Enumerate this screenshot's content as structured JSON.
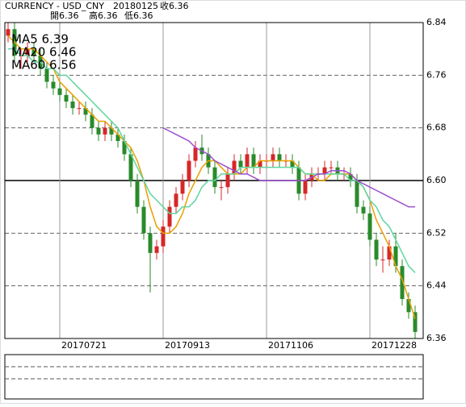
{
  "chart_data": {
    "type": "candlestick",
    "header": {
      "symbol": "CURRENCY - USD_CNY",
      "date": "20180125",
      "close": "收6.36",
      "open": "開6.36",
      "high": "高6.36",
      "low": "低6.36"
    },
    "categories": [
      null,
      null,
      null,
      null,
      null,
      null,
      null,
      null,
      "20170721",
      null,
      null,
      null,
      null,
      null,
      null,
      null,
      null,
      null,
      null,
      null,
      null,
      null,
      null,
      null,
      "20170913",
      null,
      null,
      null,
      null,
      null,
      null,
      null,
      null,
      null,
      null,
      null,
      null,
      null,
      null,
      null,
      "20171106",
      null,
      null,
      null,
      null,
      null,
      null,
      null,
      null,
      null,
      null,
      null,
      null,
      null,
      null,
      null,
      "20171228",
      null,
      null,
      null,
      null,
      null,
      null,
      null
    ],
    "open": [
      6.82,
      6.83,
      6.79,
      6.79,
      6.8,
      6.79,
      6.77,
      6.75,
      6.74,
      6.73,
      6.72,
      6.71,
      6.71,
      6.7,
      6.68,
      6.67,
      6.68,
      6.67,
      6.66,
      6.64,
      6.6,
      6.56,
      6.52,
      6.49,
      6.5,
      6.53,
      6.56,
      6.58,
      6.6,
      6.63,
      6.65,
      6.64,
      6.62,
      6.59,
      6.59,
      6.61,
      6.63,
      6.62,
      6.64,
      6.62,
      6.63,
      6.63,
      6.64,
      6.63,
      6.63,
      6.62,
      6.58,
      6.6,
      6.61,
      6.61,
      6.62,
      6.62,
      6.61,
      6.61,
      6.6,
      6.56,
      6.55,
      6.51,
      6.48,
      6.48,
      6.5,
      6.47,
      6.42,
      6.4
    ],
    "high": [
      6.84,
      6.84,
      6.8,
      6.81,
      6.81,
      6.8,
      6.78,
      6.76,
      6.75,
      6.74,
      6.73,
      6.72,
      6.72,
      6.71,
      6.69,
      6.69,
      6.69,
      6.68,
      6.67,
      6.65,
      6.61,
      6.57,
      6.53,
      6.51,
      6.54,
      6.57,
      6.59,
      6.61,
      6.64,
      6.66,
      6.67,
      6.65,
      6.63,
      6.6,
      6.62,
      6.64,
      6.64,
      6.65,
      6.65,
      6.64,
      6.64,
      6.65,
      6.65,
      6.64,
      6.64,
      6.63,
      6.61,
      6.62,
      6.62,
      6.63,
      6.63,
      6.63,
      6.62,
      6.62,
      6.61,
      6.57,
      6.56,
      6.52,
      6.5,
      6.51,
      6.52,
      6.48,
      6.43,
      6.41
    ],
    "low": [
      6.81,
      6.78,
      6.77,
      6.78,
      6.78,
      6.76,
      6.74,
      6.73,
      6.72,
      6.71,
      6.7,
      6.7,
      6.69,
      6.67,
      6.66,
      6.66,
      6.66,
      6.65,
      6.63,
      6.59,
      6.55,
      6.51,
      6.43,
      6.48,
      6.49,
      6.52,
      6.55,
      6.57,
      6.59,
      6.62,
      6.63,
      6.61,
      6.58,
      6.57,
      6.58,
      6.6,
      6.61,
      6.61,
      6.61,
      6.61,
      6.62,
      6.62,
      6.62,
      6.62,
      6.61,
      6.57,
      6.57,
      6.59,
      6.6,
      6.6,
      6.61,
      6.6,
      6.6,
      6.59,
      6.55,
      6.54,
      6.5,
      6.47,
      6.46,
      6.47,
      6.46,
      6.41,
      6.39,
      6.36
    ],
    "close": [
      6.83,
      6.79,
      6.79,
      6.8,
      6.79,
      6.77,
      6.75,
      6.74,
      6.73,
      6.72,
      6.71,
      6.71,
      6.7,
      6.68,
      6.67,
      6.68,
      6.67,
      6.66,
      6.64,
      6.6,
      6.56,
      6.52,
      6.49,
      6.5,
      6.53,
      6.56,
      6.58,
      6.6,
      6.63,
      6.65,
      6.64,
      6.62,
      6.59,
      6.59,
      6.61,
      6.63,
      6.62,
      6.64,
      6.62,
      6.63,
      6.63,
      6.64,
      6.63,
      6.63,
      6.62,
      6.58,
      6.6,
      6.61,
      6.61,
      6.62,
      6.62,
      6.61,
      6.61,
      6.6,
      6.56,
      6.55,
      6.51,
      6.48,
      6.48,
      6.5,
      6.47,
      6.42,
      6.4,
      6.37
    ],
    "up_color": "#d62728",
    "down_color": "#2a8a2a",
    "series": [
      {
        "name": "MA5 6.39",
        "color": "#e8a000",
        "values": [
          6.82,
          6.81,
          6.8,
          6.8,
          6.8,
          6.79,
          6.78,
          6.77,
          6.75,
          6.74,
          6.73,
          6.72,
          6.71,
          6.7,
          6.69,
          6.69,
          6.68,
          6.67,
          6.66,
          6.65,
          6.63,
          6.6,
          6.56,
          6.53,
          6.52,
          6.52,
          6.53,
          6.55,
          6.58,
          6.6,
          6.62,
          6.63,
          6.63,
          6.62,
          6.61,
          6.61,
          6.61,
          6.62,
          6.62,
          6.63,
          6.63,
          6.63,
          6.63,
          6.63,
          6.63,
          6.62,
          6.61,
          6.61,
          6.6,
          6.6,
          6.61,
          6.61,
          6.61,
          6.61,
          6.6,
          6.59,
          6.57,
          6.54,
          6.52,
          6.5,
          6.47,
          6.45,
          6.42,
          6.39
        ]
      },
      {
        "name": "MA20 6.46",
        "color": "#5fd6a0",
        "values": [
          6.8,
          6.8,
          6.79,
          6.79,
          6.78,
          6.78,
          6.77,
          6.77,
          6.76,
          6.76,
          6.75,
          6.74,
          6.73,
          6.72,
          6.71,
          6.7,
          6.69,
          6.68,
          6.66,
          6.64,
          6.62,
          6.6,
          6.58,
          6.57,
          6.56,
          6.55,
          6.55,
          6.56,
          6.56,
          6.57,
          6.59,
          6.6,
          6.6,
          6.61,
          6.61,
          6.61,
          6.62,
          6.62,
          6.62,
          6.62,
          6.62,
          6.62,
          6.62,
          6.62,
          6.62,
          6.62,
          6.61,
          6.61,
          6.61,
          6.61,
          6.61,
          6.61,
          6.61,
          6.6,
          6.6,
          6.59,
          6.57,
          6.56,
          6.54,
          6.53,
          6.51,
          6.49,
          6.47,
          6.46
        ]
      },
      {
        "name": "MA60 6.56",
        "color": "#9b4fd0",
        "values": [
          null,
          null,
          null,
          null,
          null,
          null,
          null,
          null,
          null,
          null,
          null,
          null,
          null,
          null,
          null,
          null,
          null,
          null,
          null,
          null,
          null,
          null,
          null,
          null,
          6.68,
          6.675,
          6.67,
          6.665,
          6.66,
          6.65,
          6.645,
          6.64,
          6.63,
          6.625,
          6.62,
          6.615,
          6.61,
          6.61,
          6.605,
          6.6,
          6.6,
          6.6,
          6.6,
          6.6,
          6.6,
          6.6,
          6.6,
          6.605,
          6.61,
          6.61,
          6.615,
          6.615,
          6.615,
          6.61,
          6.6,
          6.595,
          6.59,
          6.585,
          6.58,
          6.575,
          6.57,
          6.565,
          6.56,
          6.56
        ]
      }
    ],
    "ylim": [
      6.36,
      6.84
    ],
    "yticks": [
      6.36,
      6.44,
      6.52,
      {
        "value": 6.6,
        "label": "6.60"
      },
      6.68,
      6.76,
      6.84
    ],
    "reference_line": 6.6,
    "grid": true
  }
}
